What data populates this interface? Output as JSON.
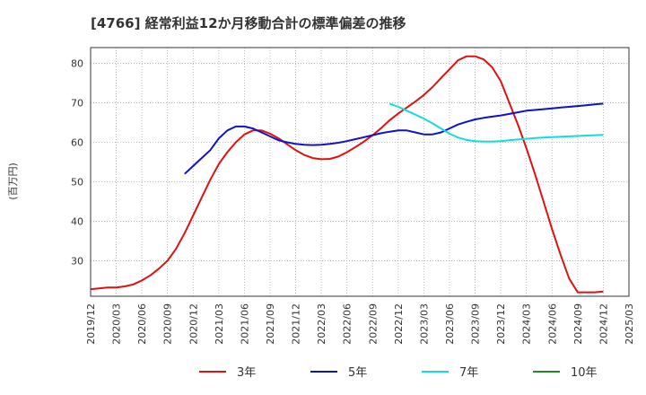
{
  "chart_data": {
    "type": "line",
    "title": "[4766]  経常利益12か月移動合計の標準偏差の推移",
    "ylabel": "(百万円)",
    "xlabel": "",
    "ylim": [
      21,
      84
    ],
    "yticks": [
      30,
      40,
      50,
      60,
      70,
      80
    ],
    "xticks": [
      "2019/12",
      "2020/03",
      "2020/06",
      "2020/09",
      "2020/12",
      "2021/03",
      "2021/06",
      "2021/09",
      "2021/12",
      "2022/03",
      "2022/06",
      "2022/09",
      "2022/12",
      "2023/03",
      "2023/06",
      "2023/09",
      "2023/12",
      "2024/03",
      "2024/06",
      "2024/09",
      "2024/12",
      "2025/03"
    ],
    "grid": true,
    "legend_position": "bottom",
    "series": [
      {
        "name": "3年",
        "color": "#dd1111",
        "x": [
          "2019/12",
          "2020/01",
          "2020/02",
          "2020/03",
          "2020/04",
          "2020/05",
          "2020/06",
          "2020/07",
          "2020/08",
          "2020/09",
          "2020/10",
          "2020/11",
          "2020/12",
          "2021/01",
          "2021/02",
          "2021/03",
          "2021/04",
          "2021/05",
          "2021/06",
          "2021/07",
          "2021/08",
          "2021/09",
          "2021/10",
          "2021/11",
          "2021/12",
          "2022/01",
          "2022/02",
          "2022/03",
          "2022/04",
          "2022/05",
          "2022/06",
          "2022/07",
          "2022/08",
          "2022/09",
          "2022/10",
          "2022/11",
          "2022/12",
          "2023/01",
          "2023/02",
          "2023/03",
          "2023/04",
          "2023/05",
          "2023/06",
          "2023/07",
          "2023/08",
          "2023/09",
          "2023/10",
          "2023/11",
          "2023/12",
          "2024/01",
          "2024/02",
          "2024/03",
          "2024/04",
          "2024/05",
          "2024/06",
          "2024/07",
          "2024/08",
          "2024/09",
          "2024/10",
          "2024/11",
          "2024/12"
        ],
        "values": [
          22.8,
          23.0,
          23.2,
          23.2,
          23.5,
          24.0,
          25.0,
          26.3,
          28.0,
          30.0,
          33.0,
          37.0,
          41.5,
          46.0,
          50.5,
          54.5,
          57.5,
          60.0,
          62.0,
          63.0,
          63.0,
          62.2,
          61.0,
          59.5,
          58.0,
          56.8,
          56.0,
          55.7,
          55.8,
          56.4,
          57.5,
          58.8,
          60.2,
          61.8,
          63.6,
          65.6,
          67.3,
          68.8,
          70.3,
          72.0,
          74.0,
          76.3,
          78.5,
          80.8,
          81.8,
          81.8,
          81.0,
          79.0,
          75.5,
          70.0,
          64.5,
          58.5,
          52.0,
          45.0,
          38.0,
          31.5,
          25.5,
          22.0,
          22.0,
          22.0,
          22.2
        ],
        "note": "one value per month from 2019/12"
      },
      {
        "name": "5年",
        "color": "#1111cc",
        "x": [
          "2020/11",
          "2020/12",
          "2021/01",
          "2021/02",
          "2021/03",
          "2021/04",
          "2021/05",
          "2021/06",
          "2021/07",
          "2021/08",
          "2021/09",
          "2021/10",
          "2021/11",
          "2021/12",
          "2022/01",
          "2022/02",
          "2022/03",
          "2022/04",
          "2022/05",
          "2022/06",
          "2022/07",
          "2022/08",
          "2022/09",
          "2022/10",
          "2022/11",
          "2022/12",
          "2023/01",
          "2023/02",
          "2023/03",
          "2023/04",
          "2023/05",
          "2023/06",
          "2023/07",
          "2023/08",
          "2023/09",
          "2023/10",
          "2023/11",
          "2023/12",
          "2024/01",
          "2024/02",
          "2024/03",
          "2024/04",
          "2024/05",
          "2024/06",
          "2024/07",
          "2024/08",
          "2024/09",
          "2024/10",
          "2024/11",
          "2024/12"
        ],
        "values": [
          52.0,
          54.0,
          56.0,
          58.0,
          61.0,
          63.0,
          64.0,
          64.0,
          63.5,
          62.5,
          61.5,
          60.5,
          60.0,
          59.6,
          59.4,
          59.3,
          59.4,
          59.6,
          59.9,
          60.3,
          60.8,
          61.3,
          61.8,
          62.3,
          62.7,
          63.0,
          63.0,
          62.5,
          62.0,
          62.0,
          62.5,
          63.5,
          64.5,
          65.2,
          65.8,
          66.2,
          66.5,
          66.8,
          67.2,
          67.6,
          68.0,
          68.2,
          68.4,
          68.6,
          68.8,
          69.0,
          69.2,
          69.4,
          69.6,
          69.8
        ]
      },
      {
        "name": "7年",
        "color": "#11dddd",
        "x": [
          "2022/11",
          "2022/12",
          "2023/01",
          "2023/02",
          "2023/03",
          "2023/04",
          "2023/05",
          "2023/06",
          "2023/07",
          "2023/08",
          "2023/09",
          "2023/10",
          "2023/11",
          "2023/12",
          "2024/01",
          "2024/02",
          "2024/03",
          "2024/04",
          "2024/05",
          "2024/06",
          "2024/07",
          "2024/08",
          "2024/09",
          "2024/10",
          "2024/11",
          "2024/12"
        ],
        "values": [
          69.8,
          69.0,
          68.0,
          67.0,
          66.0,
          64.8,
          63.5,
          62.2,
          61.2,
          60.6,
          60.3,
          60.2,
          60.2,
          60.3,
          60.5,
          60.7,
          60.9,
          61.1,
          61.2,
          61.3,
          61.4,
          61.5,
          61.6,
          61.7,
          61.8,
          61.9
        ]
      },
      {
        "name": "10年",
        "color": "#228822",
        "x": [],
        "values": []
      }
    ]
  }
}
